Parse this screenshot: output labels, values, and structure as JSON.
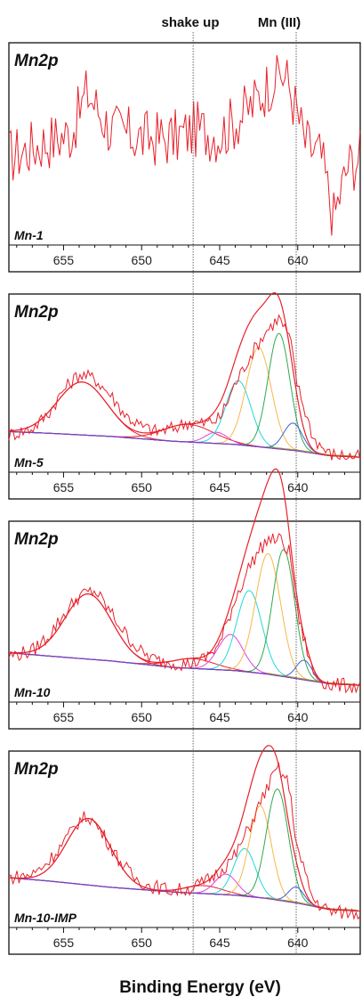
{
  "figure": {
    "header_labels": [
      "shake up",
      "Mn (III)"
    ],
    "xlabel": "Binding Energy (eV)"
  },
  "chart_data": [
    {
      "type": "line",
      "title": "Mn2p",
      "sample_label": "Mn-1",
      "x_reversed": true,
      "xlim": [
        658.5,
        636
      ],
      "xticks": [
        655,
        650,
        645,
        640
      ],
      "reference_lines": [
        646.7,
        640.1
      ],
      "series": [
        {
          "name": "",
          "role": "raw",
          "color": "#e8202a",
          "x": [
            658.5,
            656.5,
            654.5,
            653.5,
            652,
            650,
            648,
            646.5,
            645,
            643,
            642,
            641.2,
            640.6,
            639.5,
            638.5,
            637.7,
            636.8,
            636
          ],
          "y": [
            0.45,
            0.52,
            0.58,
            0.8,
            0.6,
            0.55,
            0.55,
            0.6,
            0.57,
            0.72,
            0.83,
            0.92,
            0.85,
            0.52,
            0.45,
            0.12,
            0.4,
            0.45
          ]
        }
      ]
    },
    {
      "type": "line",
      "title": "Mn2p",
      "sample_label": "Mn-5",
      "x_reversed": true,
      "xlim": [
        658.5,
        636
      ],
      "xticks": [
        655,
        650,
        645,
        640
      ],
      "reference_lines": [
        646.7,
        640.1
      ],
      "series": [
        {
          "name": "",
          "role": "raw",
          "color": "#e8202a",
          "x": [
            658.5,
            657,
            656,
            655,
            654,
            653,
            652,
            651,
            650,
            649,
            648,
            647,
            646,
            645,
            644,
            643,
            642,
            641.2,
            640.5,
            640,
            639,
            638,
            637,
            636
          ],
          "y": [
            0.2,
            0.24,
            0.33,
            0.48,
            0.58,
            0.55,
            0.45,
            0.32,
            0.25,
            0.22,
            0.24,
            0.28,
            0.27,
            0.3,
            0.52,
            0.7,
            0.85,
            0.93,
            0.8,
            0.5,
            0.18,
            0.08,
            0.07,
            0.06
          ]
        },
        {
          "name": "",
          "role": "background",
          "color": "#7e3fc0",
          "x": [
            658.5,
            656,
            652,
            648,
            644,
            642,
            640,
            638,
            636
          ],
          "y": [
            0.22,
            0.21,
            0.19,
            0.16,
            0.14,
            0.12,
            0.1,
            0.07,
            0.06
          ]
        },
        {
          "name": "",
          "role": "component",
          "color": "#e8202a",
          "shape": "gauss",
          "center": 653.8,
          "height": 0.33,
          "width": 1.6
        },
        {
          "name": "",
          "role": "component",
          "color": "#e8202a",
          "shape": "gauss",
          "center": 647.0,
          "height": 0.11,
          "width": 1.6
        },
        {
          "name": "",
          "role": "component",
          "color": "#e040e0",
          "shape": "gauss",
          "center": 645.2,
          "height": 0.07,
          "width": 0.7
        },
        {
          "name": "",
          "role": "component",
          "color": "#22d8d8",
          "shape": "gauss",
          "center": 643.8,
          "height": 0.4,
          "width": 0.8
        },
        {
          "name": "",
          "role": "component",
          "color": "#f5b84a",
          "shape": "gauss",
          "center": 642.5,
          "height": 0.62,
          "width": 0.8
        },
        {
          "name": "",
          "role": "component",
          "color": "#2fa84f",
          "shape": "gauss",
          "center": 641.2,
          "height": 0.72,
          "width": 0.7
        },
        {
          "name": "",
          "role": "component",
          "color": "#3f63d8",
          "shape": "gauss",
          "center": 640.3,
          "height": 0.17,
          "width": 0.6
        },
        {
          "name": "",
          "role": "envelope",
          "color": "#e8202a",
          "shape": "sum"
        }
      ]
    },
    {
      "type": "line",
      "title": "Mn2p",
      "sample_label": "Mn-10",
      "x_reversed": true,
      "xlim": [
        658.5,
        636
      ],
      "xticks": [
        655,
        650,
        645,
        640
      ],
      "reference_lines": [
        646.7,
        640.1
      ],
      "series": [
        {
          "name": "",
          "role": "raw",
          "color": "#e8202a",
          "x": [
            658.5,
            657,
            656,
            655,
            654,
            653,
            652,
            651,
            650,
            649,
            648,
            647,
            646,
            645,
            644,
            643,
            642,
            641.2,
            640.5,
            640,
            639,
            638,
            637,
            636
          ],
          "y": [
            0.25,
            0.28,
            0.37,
            0.5,
            0.62,
            0.65,
            0.52,
            0.38,
            0.27,
            0.22,
            0.21,
            0.2,
            0.23,
            0.32,
            0.6,
            0.82,
            0.96,
            0.97,
            0.88,
            0.5,
            0.14,
            0.07,
            0.07,
            0.06
          ]
        },
        {
          "name": "",
          "role": "background",
          "color": "#7e3fc0",
          "x": [
            658.5,
            656,
            652,
            648,
            644,
            642,
            640,
            638,
            636
          ],
          "y": [
            0.27,
            0.25,
            0.22,
            0.18,
            0.16,
            0.14,
            0.11,
            0.08,
            0.07
          ]
        },
        {
          "name": "",
          "role": "component",
          "color": "#e8202a",
          "shape": "gauss",
          "center": 653.4,
          "height": 0.4,
          "width": 1.5
        },
        {
          "name": "",
          "role": "component",
          "color": "#e8202a",
          "shape": "gauss",
          "center": 646.7,
          "height": 0.06,
          "width": 1.4
        },
        {
          "name": "",
          "role": "component",
          "color": "#e040e0",
          "shape": "gauss",
          "center": 644.3,
          "height": 0.22,
          "width": 0.8
        },
        {
          "name": "",
          "role": "component",
          "color": "#22d8d8",
          "shape": "gauss",
          "center": 643.1,
          "height": 0.5,
          "width": 0.8
        },
        {
          "name": "",
          "role": "component",
          "color": "#f5b84a",
          "shape": "gauss",
          "center": 641.9,
          "height": 0.74,
          "width": 0.8
        },
        {
          "name": "",
          "role": "component",
          "color": "#2fa84f",
          "shape": "gauss",
          "center": 640.9,
          "height": 0.78,
          "width": 0.7
        },
        {
          "name": "",
          "role": "component",
          "color": "#3f63d8",
          "shape": "gauss",
          "center": 639.6,
          "height": 0.12,
          "width": 0.5
        },
        {
          "name": "",
          "role": "envelope",
          "color": "#e8202a",
          "shape": "sum"
        }
      ]
    },
    {
      "type": "line",
      "title": "Mn2p",
      "sample_label": "Mn-10-IMP",
      "x_reversed": true,
      "xlim": [
        658.5,
        636
      ],
      "xticks": [
        655,
        650,
        645,
        640
      ],
      "reference_lines": [
        646.7,
        640.1
      ],
      "series": [
        {
          "name": "",
          "role": "raw",
          "color": "#e8202a",
          "x": [
            658.5,
            657,
            656,
            655,
            654,
            653.4,
            652.5,
            651.5,
            650.5,
            649.5,
            648,
            647,
            646,
            645,
            644,
            643,
            642,
            641.3,
            640.6,
            640,
            639,
            638,
            637,
            636
          ],
          "y": [
            0.28,
            0.3,
            0.38,
            0.5,
            0.64,
            0.67,
            0.56,
            0.4,
            0.28,
            0.23,
            0.2,
            0.21,
            0.25,
            0.32,
            0.42,
            0.62,
            0.84,
            0.97,
            0.88,
            0.45,
            0.14,
            0.07,
            0.06,
            0.06
          ]
        },
        {
          "name": "",
          "role": "background",
          "color": "#7e3fc0",
          "x": [
            658.5,
            656,
            652,
            648,
            644,
            642,
            640,
            638,
            636
          ],
          "y": [
            0.28,
            0.26,
            0.22,
            0.19,
            0.17,
            0.15,
            0.12,
            0.08,
            0.07
          ]
        },
        {
          "name": "",
          "role": "component",
          "color": "#e8202a",
          "shape": "gauss",
          "center": 653.4,
          "height": 0.42,
          "width": 1.4
        },
        {
          "name": "",
          "role": "component",
          "color": "#e8202a",
          "shape": "gauss",
          "center": 646.0,
          "height": 0.05,
          "width": 1.2
        },
        {
          "name": "",
          "role": "component",
          "color": "#e040e0",
          "shape": "gauss",
          "center": 644.6,
          "height": 0.13,
          "width": 0.7
        },
        {
          "name": "",
          "role": "component",
          "color": "#22d8d8",
          "shape": "gauss",
          "center": 643.4,
          "height": 0.3,
          "width": 0.7
        },
        {
          "name": "",
          "role": "component",
          "color": "#f5b84a",
          "shape": "gauss",
          "center": 642.4,
          "height": 0.58,
          "width": 0.7
        },
        {
          "name": "",
          "role": "component",
          "color": "#2fa84f",
          "shape": "gauss",
          "center": 641.3,
          "height": 0.7,
          "width": 0.7
        },
        {
          "name": "",
          "role": "component",
          "color": "#3f63d8",
          "shape": "gauss",
          "center": 640.1,
          "height": 0.1,
          "width": 0.5
        },
        {
          "name": "",
          "role": "envelope",
          "color": "#e8202a",
          "shape": "sum"
        }
      ]
    }
  ]
}
